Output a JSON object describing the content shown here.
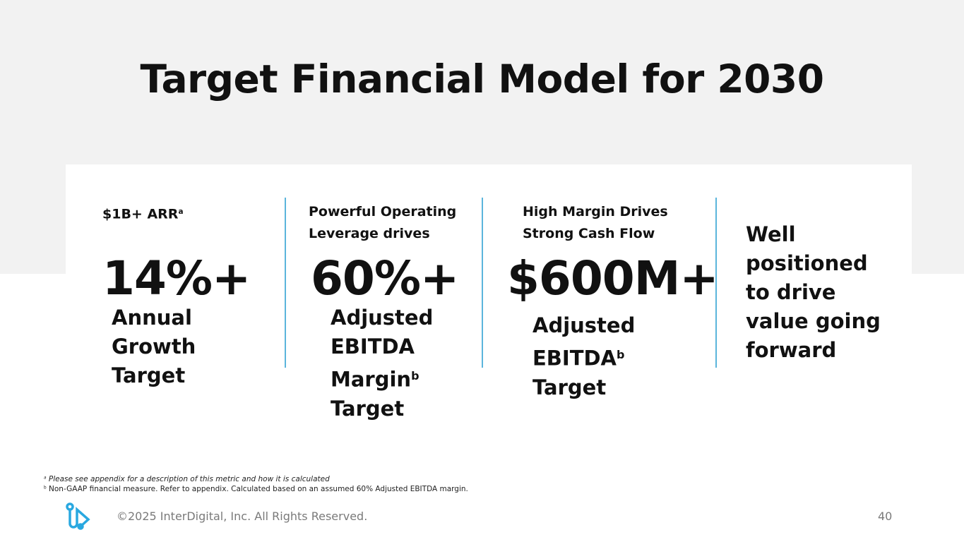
{
  "title": "Target Financial Model for 2030",
  "columns": [
    {
      "label": "$1B+ ARR",
      "label_sup": "a",
      "value": "14%+",
      "desc_lines": [
        "Annual",
        "Growth",
        "Target"
      ]
    },
    {
      "label_lines": [
        "Powerful Operating",
        "Leverage drives"
      ],
      "value": "60%+",
      "desc_lines": [
        "Adjusted",
        "EBITDA",
        "Margin",
        "Target"
      ],
      "desc_sup": "b"
    },
    {
      "label_lines": [
        "High Margin Drives",
        "Strong Cash Flow"
      ],
      "value": "$600M+",
      "desc_lines": [
        "Adjusted",
        "EBITDA",
        "Target"
      ],
      "desc_sup": "b"
    },
    {
      "desc_lines": [
        "Well",
        "positioned",
        "to drive",
        "value going",
        "forward"
      ]
    }
  ],
  "footnotes": {
    "a_mark": "a",
    "a": "Please see appendix for a description of this metric and how it is calculated",
    "b_mark": "b",
    "b": "Non-GAAP financial measure. Refer to appendix. Calculated based on an assumed 60% Adjusted EBITDA margin."
  },
  "footer": {
    "copyright": "©2025 InterDigital, Inc. All Rights Reserved.",
    "page": "40",
    "logo": "interdigital-logo"
  },
  "colors": {
    "accent": "#29a8e0",
    "divider": "#5bb5dc",
    "band": "#f2f2f2"
  }
}
